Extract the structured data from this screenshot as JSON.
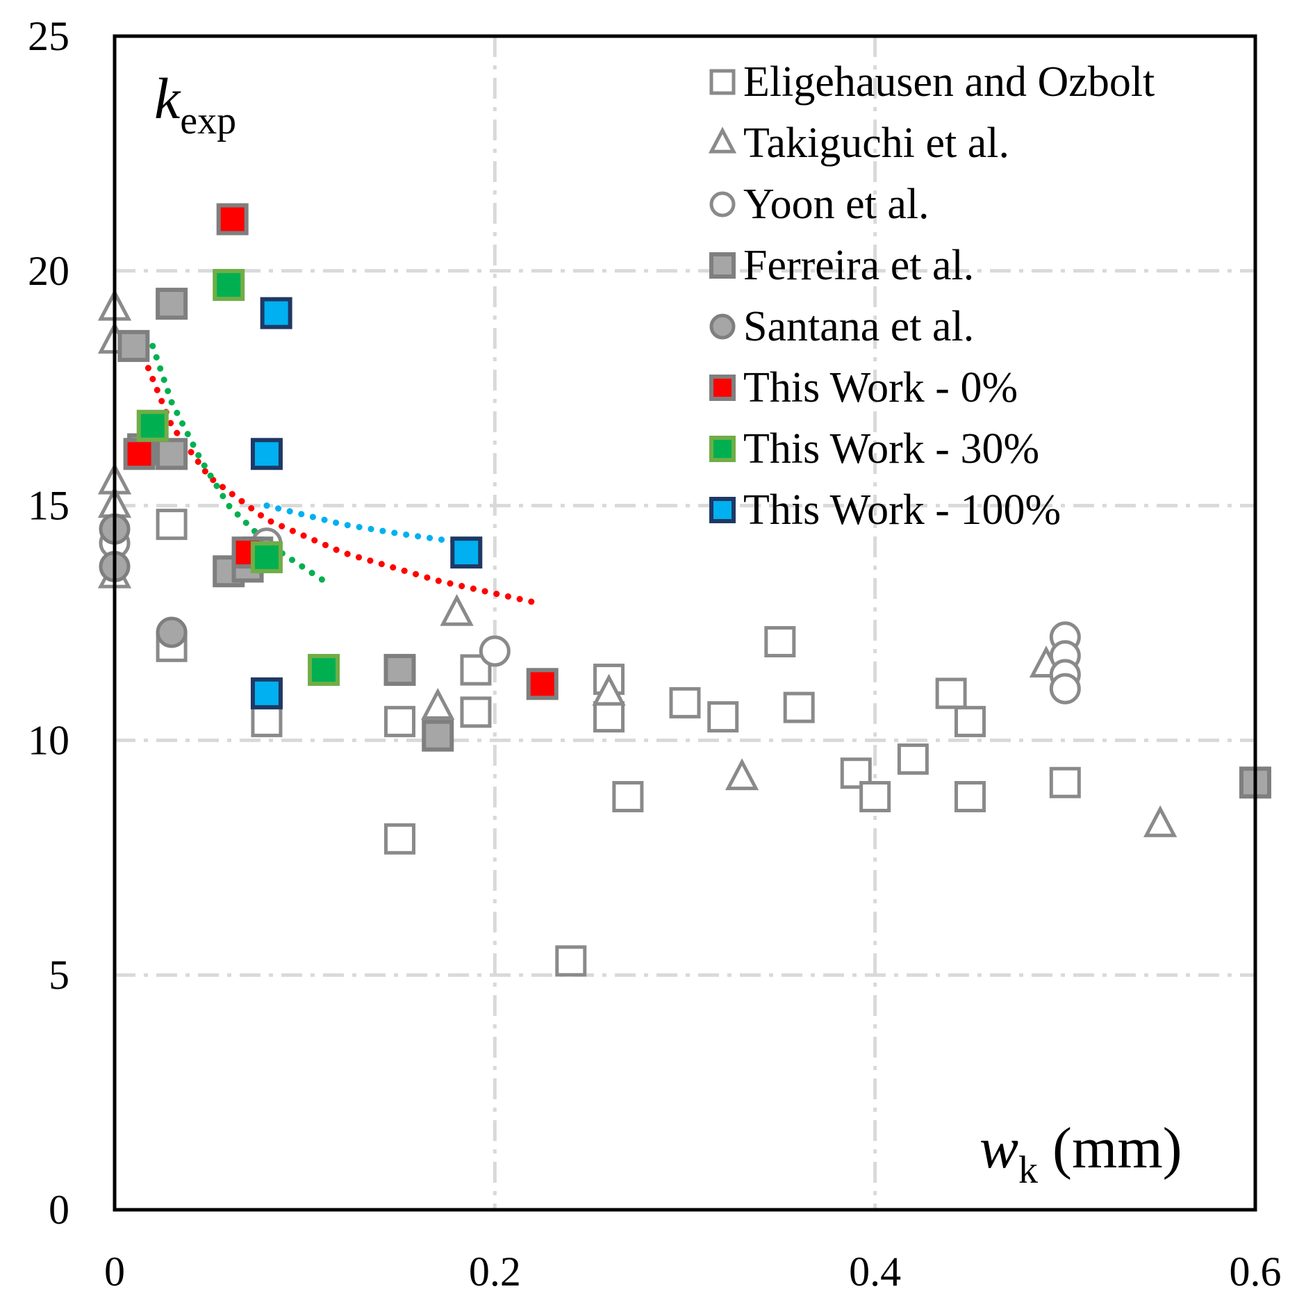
{
  "chart_data": {
    "type": "scatter",
    "xlabel": "w",
    "xlabel_sub": "k",
    "xlabel_unit": " (mm)",
    "ylabel": "k",
    "ylabel_sub": "exp",
    "xlim": [
      0,
      0.6
    ],
    "ylim": [
      0,
      25
    ],
    "xticks": [
      0,
      0.2,
      0.4,
      0.6
    ],
    "xtick_labels": [
      "0",
      "0.2",
      "0.4",
      "0.6"
    ],
    "yticks": [
      0,
      5,
      10,
      15,
      20,
      25
    ],
    "ytick_labels": [
      "0",
      "5",
      "10",
      "15",
      "20",
      "25"
    ],
    "grid": "dash-dot light gray",
    "legend_position": "top-right",
    "series": [
      {
        "name": "Eligehausen and Ozbolt",
        "marker": "square-open",
        "color": "#8a8a8a",
        "points": [
          [
            0.03,
            14.6
          ],
          [
            0.03,
            12.0
          ],
          [
            0.08,
            10.4
          ],
          [
            0.15,
            10.4
          ],
          [
            0.15,
            7.9
          ],
          [
            0.19,
            11.5
          ],
          [
            0.19,
            10.6
          ],
          [
            0.24,
            5.3
          ],
          [
            0.26,
            11.3
          ],
          [
            0.26,
            10.5
          ],
          [
            0.27,
            8.8
          ],
          [
            0.3,
            10.8
          ],
          [
            0.32,
            10.5
          ],
          [
            0.35,
            12.1
          ],
          [
            0.36,
            10.7
          ],
          [
            0.39,
            9.3
          ],
          [
            0.4,
            8.8
          ],
          [
            0.42,
            9.6
          ],
          [
            0.44,
            11.0
          ],
          [
            0.45,
            10.4
          ],
          [
            0.45,
            8.8
          ],
          [
            0.5,
            9.1
          ]
        ]
      },
      {
        "name": "Takiguchi et al.",
        "marker": "triangle-open",
        "color": "#8a8a8a",
        "points": [
          [
            0.0,
            19.2
          ],
          [
            0.0,
            18.5
          ],
          [
            0.0,
            15.5
          ],
          [
            0.0,
            15.0
          ],
          [
            0.0,
            13.5
          ],
          [
            0.17,
            10.7
          ],
          [
            0.18,
            12.7
          ],
          [
            0.26,
            11.0
          ],
          [
            0.33,
            9.2
          ],
          [
            0.49,
            11.6
          ],
          [
            0.55,
            8.2
          ]
        ]
      },
      {
        "name": "Yoon et al.",
        "marker": "circle-open",
        "color": "#8a8a8a",
        "points": [
          [
            0.0,
            14.2
          ],
          [
            0.08,
            14.2
          ],
          [
            0.2,
            11.9
          ],
          [
            0.5,
            12.2
          ],
          [
            0.5,
            11.8
          ],
          [
            0.5,
            11.4
          ],
          [
            0.5,
            11.1
          ]
        ]
      },
      {
        "name": "Ferreira et al.",
        "marker": "square-filled",
        "color": "#a6a6a6",
        "points": [
          [
            0.01,
            18.4
          ],
          [
            0.03,
            19.3
          ],
          [
            0.015,
            16.2
          ],
          [
            0.03,
            16.1
          ],
          [
            0.06,
            13.6
          ],
          [
            0.07,
            13.7
          ],
          [
            0.075,
            14.0
          ],
          [
            0.15,
            11.5
          ],
          [
            0.17,
            10.1
          ],
          [
            0.6,
            9.1
          ]
        ]
      },
      {
        "name": "Santana et al.",
        "marker": "circle-filled",
        "color": "#a6a6a6",
        "points": [
          [
            0.0,
            14.5
          ],
          [
            0.0,
            13.7
          ],
          [
            0.03,
            12.3
          ]
        ]
      },
      {
        "name": "This Work - 0%",
        "marker": "square-filled",
        "color": "#ff0000",
        "points": [
          [
            0.062,
            21.1
          ],
          [
            0.013,
            16.1
          ],
          [
            0.07,
            14.0
          ],
          [
            0.225,
            11.2
          ]
        ],
        "trend": [
          [
            0.013,
            18.4
          ],
          [
            0.03,
            16.7
          ],
          [
            0.05,
            15.6
          ],
          [
            0.08,
            14.7
          ],
          [
            0.12,
            14.0
          ],
          [
            0.17,
            13.4
          ],
          [
            0.225,
            12.9
          ]
        ]
      },
      {
        "name": "This Work - 30%",
        "marker": "square-filled",
        "color": "#00b050",
        "points": [
          [
            0.06,
            19.7
          ],
          [
            0.02,
            16.7
          ],
          [
            0.08,
            13.9
          ],
          [
            0.11,
            11.5
          ]
        ],
        "trend": [
          [
            0.02,
            18.4
          ],
          [
            0.03,
            17.2
          ],
          [
            0.045,
            16.0
          ],
          [
            0.06,
            15.0
          ],
          [
            0.08,
            14.2
          ],
          [
            0.11,
            13.4
          ]
        ]
      },
      {
        "name": "This Work - 100%",
        "marker": "square-filled",
        "color": "#00b0f0",
        "points": [
          [
            0.085,
            19.1
          ],
          [
            0.08,
            16.1
          ],
          [
            0.08,
            11.0
          ],
          [
            0.185,
            14.0
          ]
        ],
        "trend": [
          [
            0.08,
            15.0
          ],
          [
            0.12,
            14.6
          ],
          [
            0.15,
            14.4
          ],
          [
            0.185,
            14.2
          ]
        ]
      }
    ]
  }
}
